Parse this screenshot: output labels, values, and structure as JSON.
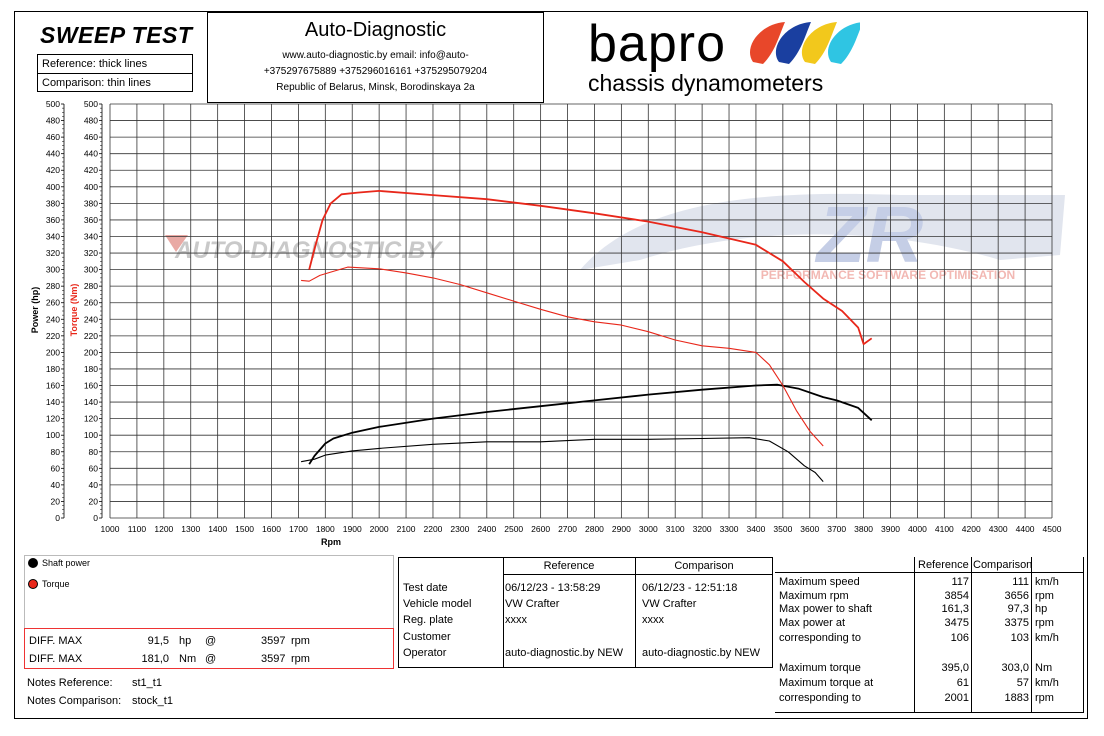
{
  "header": {
    "title": "SWEEP TEST",
    "reference_label": "Reference: thick lines",
    "comparison_label": "Comparison: thin lines",
    "company": "Auto-Diagnostic",
    "contact_line1": "www.auto-diagnostic.by      email: info@auto-",
    "contact_line2": "+375297675889  +375296016161  +375295079204",
    "contact_line3": "Republic of Belarus, Minsk, Borodinskaya 2a",
    "logo_word": "bapro",
    "logo_sub": "chassis dynamometers",
    "logo_colors": [
      "#e8472a",
      "#1a3fa0",
      "#f2c81c",
      "#2fc5e3"
    ]
  },
  "watermarks": {
    "left": "AUTO-DIAGNOSTIC.BY",
    "right_logo": "ZR",
    "right_sub": "PERFORMANCE SOFTWARE OPTIMISATION"
  },
  "chart_data": {
    "type": "line",
    "xlabel": "Rpm",
    "ylabel_power": "Power (hp)",
    "ylabel_torque": "Torque (Nm)",
    "xlim": [
      1000,
      4500
    ],
    "ylim": [
      0,
      500
    ],
    "x_ticks": [
      1000,
      1100,
      1200,
      1300,
      1400,
      1500,
      1600,
      1700,
      1800,
      1900,
      2000,
      2100,
      2200,
      2300,
      2400,
      2500,
      2600,
      2700,
      2800,
      2900,
      3000,
      3100,
      3200,
      3300,
      3400,
      3500,
      3600,
      3700,
      3800,
      3900,
      4000,
      4100,
      4200,
      4300,
      4400,
      4500
    ],
    "y_ticks": [
      0,
      20,
      40,
      60,
      80,
      100,
      120,
      140,
      160,
      180,
      200,
      220,
      240,
      260,
      280,
      300,
      320,
      340,
      360,
      380,
      400,
      420,
      440,
      460,
      480,
      500
    ],
    "grid": true,
    "colors": {
      "power": "#000000",
      "torque": "#e8271a"
    },
    "series": [
      {
        "name": "Shaft power",
        "run": "reference",
        "style": "thick",
        "x": [
          1740,
          1760,
          1800,
          1830,
          1900,
          2000,
          2200,
          2400,
          2600,
          2800,
          3000,
          3200,
          3400,
          3480,
          3560,
          3650,
          3700,
          3780,
          3830
        ],
        "y": [
          65,
          75,
          90,
          96,
          103,
          110,
          120,
          128,
          135,
          142,
          149,
          155,
          160,
          161,
          156,
          146,
          142,
          133,
          118
        ]
      },
      {
        "name": "Torque",
        "run": "reference",
        "style": "thick",
        "x": [
          1740,
          1760,
          1790,
          1820,
          1860,
          1920,
          2000,
          2200,
          2400,
          2600,
          2800,
          3000,
          3200,
          3400,
          3500,
          3580,
          3650,
          3720,
          3780,
          3800,
          3830
        ],
        "y": [
          300,
          325,
          360,
          380,
          391,
          393,
          395,
          390,
          385,
          377,
          368,
          358,
          345,
          330,
          310,
          285,
          265,
          250,
          230,
          210,
          217
        ]
      },
      {
        "name": "Shaft power",
        "run": "comparison",
        "style": "thin",
        "x": [
          1710,
          1760,
          1800,
          1900,
          2000,
          2200,
          2400,
          2600,
          2800,
          3000,
          3200,
          3375,
          3450,
          3520,
          3580,
          3620,
          3650
        ],
        "y": [
          68,
          71,
          76,
          81,
          84,
          89,
          92,
          92,
          95,
          95,
          96,
          97,
          93,
          80,
          63,
          55,
          44
        ]
      },
      {
        "name": "Torque",
        "run": "comparison",
        "style": "thin",
        "x": [
          1710,
          1740,
          1780,
          1820,
          1883,
          2000,
          2100,
          2200,
          2300,
          2400,
          2500,
          2600,
          2700,
          2800,
          2900,
          3000,
          3100,
          3200,
          3300,
          3400,
          3450,
          3500,
          3550,
          3600,
          3650
        ],
        "y": [
          287,
          286,
          293,
          297,
          303,
          301,
          296,
          290,
          282,
          272,
          262,
          252,
          243,
          237,
          233,
          225,
          215,
          208,
          205,
          200,
          185,
          160,
          130,
          105,
          87
        ]
      }
    ],
    "legend": [
      "Shaft power",
      "Torque"
    ]
  },
  "diff": {
    "rows": [
      {
        "label": "DIFF. MAX",
        "value": "91,5",
        "unit": "hp",
        "at": "@",
        "rpm": "3597",
        "rpm_unit": "rpm"
      },
      {
        "label": "DIFF. MAX",
        "value": "181,0",
        "unit": "Nm",
        "at": "@",
        "rpm": "3597",
        "rpm_unit": "rpm"
      }
    ]
  },
  "notes": {
    "reference_label": "Notes Reference:",
    "reference_value": "st1_t1",
    "comparison_label": "Notes Comparison:",
    "comparison_value": "stock_t1"
  },
  "info": {
    "col_reference": "Reference",
    "col_comparison": "Comparison",
    "rows": [
      {
        "label": "Test date",
        "ref": "06/12/23 - 13:58:29",
        "cmp": "06/12/23 - 12:51:18"
      },
      {
        "label": "Vehicle model",
        "ref": "VW Crafter",
        "cmp": "VW Crafter"
      },
      {
        "label": "Reg. plate",
        "ref": "xxxx",
        "cmp": "xxxx"
      },
      {
        "label": "Customer",
        "ref": "",
        "cmp": ""
      },
      {
        "label": "Operator",
        "ref": "auto-diagnostic.by NEW",
        "cmp": "auto-diagnostic.by NEW"
      }
    ]
  },
  "stats": {
    "col_reference": "Reference",
    "col_comparison": "Comparison",
    "rows": [
      {
        "label": "Maximum speed",
        "ref": "117",
        "cmp": "111",
        "unit": "km/h"
      },
      {
        "label": "Maximum rpm",
        "ref": "3854",
        "cmp": "3656",
        "unit": "rpm"
      },
      {
        "label": "Max power to shaft",
        "ref": "161,3",
        "cmp": "97,3",
        "unit": "hp"
      },
      {
        "label": "Max power at",
        "ref": "3475",
        "cmp": "3375",
        "unit": "rpm"
      },
      {
        "label": "corresponding to",
        "ref": "106",
        "cmp": "103",
        "unit": "km/h"
      },
      {
        "label": "Maximum torque",
        "ref": "395,0",
        "cmp": "303,0",
        "unit": "Nm"
      },
      {
        "label": "Maximum torque at",
        "ref": "61",
        "cmp": "57",
        "unit": "km/h"
      },
      {
        "label": "corresponding to",
        "ref": "2001",
        "cmp": "1883",
        "unit": "rpm"
      }
    ]
  }
}
